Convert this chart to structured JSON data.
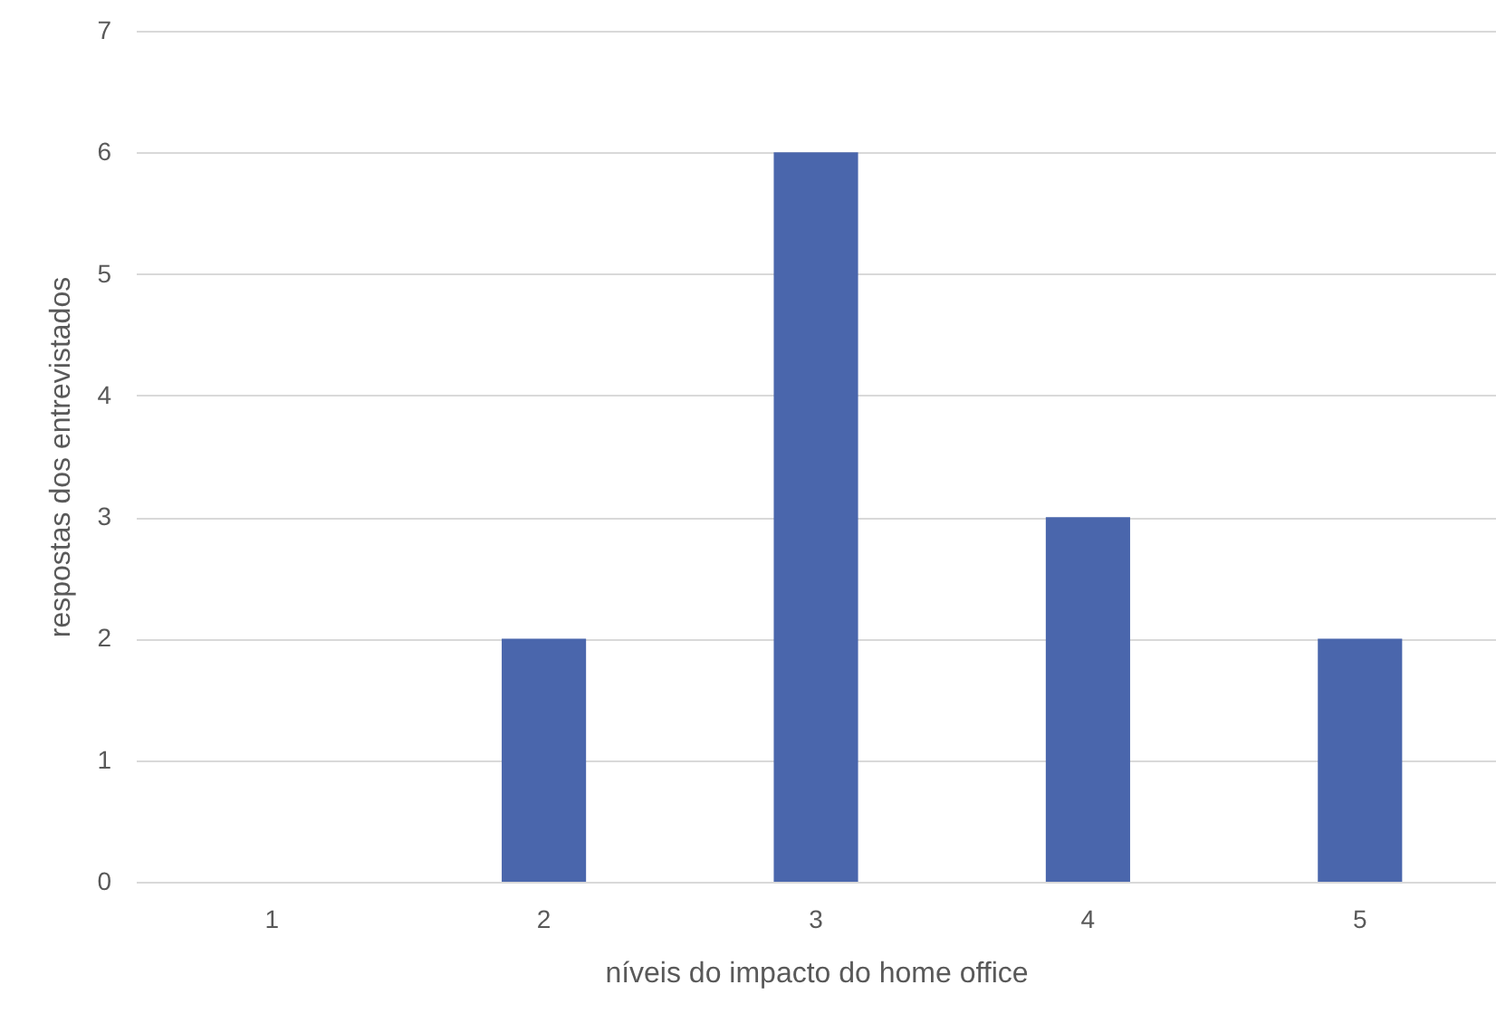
{
  "chart_data": {
    "type": "bar",
    "xlabel": "níveis do impacto do home office",
    "ylabel": "respostas dos entrevistados",
    "categories": [
      "1",
      "2",
      "3",
      "4",
      "5"
    ],
    "values": [
      0,
      2,
      6,
      3,
      2
    ],
    "color": "#4a66ac",
    "ylim": [
      0,
      7
    ],
    "yticks": [
      0,
      1,
      2,
      3,
      4,
      5,
      6,
      7
    ],
    "grid": "y"
  }
}
